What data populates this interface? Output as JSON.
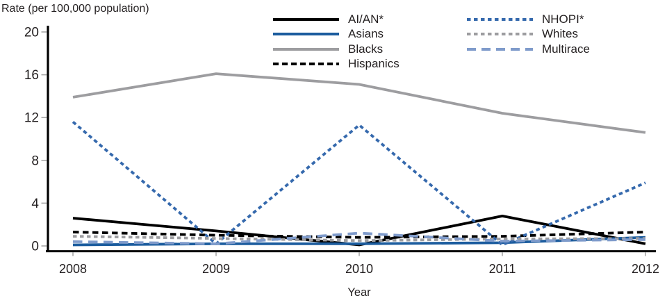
{
  "title": "Rate (per 100,000 population)",
  "axis": {
    "x_label": "Year",
    "y_tick_labels": [
      "0",
      "4",
      "8",
      "12",
      "16",
      "20"
    ]
  },
  "colors": {
    "text": "#231f20",
    "axis": "#000000",
    "tick": "#a6a6a6",
    "black_line": "#000000",
    "blue_line": "#1b5c9e",
    "gray_line": "#9d9da0",
    "nhopi_blue": "#3569ad",
    "multirace_blue": "#7f9bcb"
  },
  "chart_data": {
    "type": "line",
    "title": "Rate (per 100,000 population)",
    "xlabel": "Year",
    "ylabel": "Rate (per 100,000 population)",
    "categories": [
      "2008",
      "2009",
      "2010",
      "2011",
      "2012"
    ],
    "ylim": [
      0,
      20
    ],
    "yticks": [
      0,
      4,
      8,
      12,
      16,
      20
    ],
    "grid": false,
    "legend_position": "top-center, two columns",
    "series": [
      {
        "name": "AI/AN*",
        "values": [
          2.6,
          1.4,
          0.1,
          2.8,
          0.2
        ],
        "color": "#000000",
        "dash": "solid",
        "legend_column": 1
      },
      {
        "name": "Asians",
        "values": [
          0.1,
          0.2,
          0.2,
          0.3,
          0.8
        ],
        "color": "#1b5c9e",
        "dash": "solid",
        "legend_column": 1
      },
      {
        "name": "Blacks",
        "values": [
          13.9,
          16.1,
          15.1,
          12.4,
          10.6
        ],
        "color": "#9d9da0",
        "dash": "solid",
        "legend_column": 1
      },
      {
        "name": "Hispanics",
        "values": [
          1.3,
          1.0,
          0.8,
          0.9,
          1.3
        ],
        "color": "#000000",
        "dash": "dashed",
        "legend_column": 1
      },
      {
        "name": "NHOPI*",
        "values": [
          11.6,
          0.2,
          11.3,
          0.1,
          5.9
        ],
        "color": "#3569ad",
        "dash": "dotted",
        "legend_column": 2
      },
      {
        "name": "Whites",
        "values": [
          0.9,
          0.7,
          0.5,
          0.65,
          0.7
        ],
        "color": "#9d9da0",
        "dash": "dotted",
        "legend_column": 2
      },
      {
        "name": "Multirace",
        "values": [
          0.4,
          0.2,
          1.2,
          0.45,
          0.6
        ],
        "color": "#7f9bcb",
        "dash": "longdash",
        "legend_column": 2
      }
    ]
  }
}
